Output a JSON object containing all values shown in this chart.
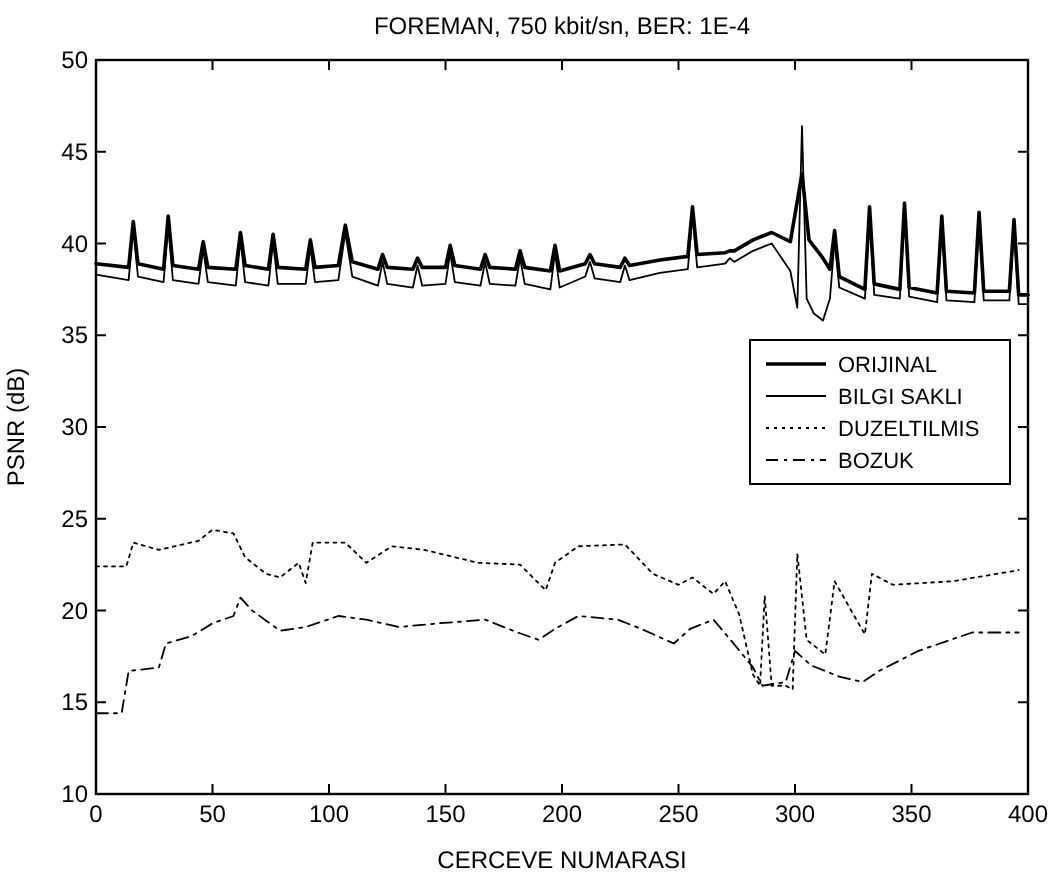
{
  "chart_data": {
    "type": "line",
    "title": "FOREMAN, 750 kbit/sn, BER: 1E-4",
    "xlabel": "CERCEVE NUMARASI",
    "ylabel": "PSNR (dB)",
    "xlim": [
      0,
      400
    ],
    "ylim": [
      10,
      50
    ],
    "xticks": [
      0,
      50,
      100,
      150,
      200,
      250,
      300,
      350,
      400
    ],
    "yticks": [
      10,
      15,
      20,
      25,
      30,
      35,
      40,
      45,
      50
    ],
    "grid": false,
    "legend": "right",
    "marker": "none",
    "series": [
      {
        "name": "ORIJINAL",
        "color": "#000000",
        "line_style": "solid",
        "x": [
          0,
          14,
          16,
          18,
          29,
          31,
          33,
          44,
          46,
          48,
          60,
          62,
          64,
          74,
          76,
          78,
          90,
          92,
          94,
          104,
          107,
          110,
          121,
          123,
          125,
          136,
          138,
          140,
          150,
          152,
          154,
          165,
          167,
          169,
          180,
          182,
          184,
          195,
          197,
          199,
          210,
          212,
          214,
          225,
          227,
          229,
          242,
          254,
          256,
          258,
          270,
          272,
          274,
          282,
          290,
          298,
          303,
          306,
          312,
          315,
          317,
          319,
          330,
          332,
          334,
          345,
          347,
          349,
          361,
          363,
          365,
          377,
          379,
          381,
          392,
          394,
          396,
          400
        ],
        "values": [
          38.9,
          38.7,
          41.2,
          38.9,
          38.6,
          41.5,
          38.8,
          38.6,
          40.1,
          38.7,
          38.6,
          40.6,
          38.8,
          38.6,
          40.5,
          38.7,
          38.6,
          40.2,
          38.7,
          38.8,
          41.0,
          39.0,
          38.6,
          39.4,
          38.7,
          38.6,
          39.2,
          38.7,
          38.7,
          39.9,
          38.8,
          38.6,
          39.4,
          38.7,
          38.6,
          39.6,
          38.7,
          38.5,
          39.9,
          38.5,
          38.9,
          39.4,
          38.9,
          38.7,
          39.2,
          38.8,
          39.1,
          39.3,
          42.0,
          39.4,
          39.5,
          39.6,
          39.6,
          40.2,
          40.6,
          40.1,
          43.8,
          40.2,
          39.2,
          38.6,
          40.7,
          38.2,
          37.5,
          42.0,
          37.8,
          37.5,
          42.2,
          37.6,
          37.3,
          41.5,
          37.4,
          37.3,
          41.7,
          37.4,
          37.4,
          41.3,
          37.2,
          37.2
        ]
      },
      {
        "name": "BILGI SAKLI",
        "color": "#000000",
        "line_style": "solid",
        "x": [
          0,
          14,
          16,
          18,
          29,
          31,
          33,
          44,
          46,
          48,
          60,
          62,
          64,
          74,
          76,
          78,
          90,
          92,
          94,
          104,
          107,
          110,
          121,
          123,
          125,
          136,
          138,
          140,
          150,
          152,
          154,
          165,
          167,
          169,
          180,
          182,
          184,
          195,
          197,
          199,
          210,
          212,
          214,
          225,
          227,
          229,
          242,
          254,
          256,
          258,
          270,
          272,
          274,
          282,
          290,
          298,
          301,
          303,
          305,
          308,
          312,
          315,
          317,
          319,
          330,
          332,
          334,
          345,
          347,
          349,
          361,
          363,
          365,
          377,
          379,
          381,
          392,
          394,
          396,
          400
        ],
        "values": [
          38.3,
          38.0,
          40.8,
          38.2,
          37.9,
          41.0,
          38.0,
          37.8,
          39.7,
          37.9,
          37.7,
          40.2,
          37.9,
          37.7,
          40.1,
          37.8,
          37.8,
          39.8,
          37.9,
          38.0,
          40.6,
          38.2,
          37.7,
          39.0,
          37.8,
          37.6,
          38.8,
          37.7,
          37.8,
          39.5,
          37.9,
          37.7,
          39.0,
          37.8,
          37.7,
          39.2,
          37.8,
          37.5,
          39.5,
          37.6,
          38.2,
          39.0,
          38.1,
          37.9,
          38.8,
          38.0,
          38.4,
          38.6,
          41.6,
          38.7,
          38.9,
          39.2,
          39.0,
          39.6,
          40.0,
          38.5,
          36.5,
          46.4,
          37.0,
          36.2,
          35.8,
          37.0,
          40.2,
          37.6,
          37.0,
          41.6,
          37.2,
          37.0,
          41.8,
          37.1,
          36.8,
          41.1,
          36.9,
          36.8,
          41.3,
          36.9,
          36.9,
          40.9,
          36.7,
          36.7
        ]
      },
      {
        "name": "DUZELTILMIS",
        "color": "#000000",
        "line_style": "dotted",
        "x": [
          0,
          13,
          16,
          27,
          44,
          50,
          59,
          64,
          73,
          79,
          87,
          90,
          93,
          107,
          116,
          127,
          141,
          164,
          182,
          193,
          197,
          207,
          227,
          239,
          250,
          256,
          265,
          270,
          276,
          282,
          285,
          287,
          290,
          296,
          299,
          301,
          305,
          313,
          317,
          325,
          330,
          333,
          342,
          368,
          396
        ],
        "values": [
          22.4,
          22.4,
          23.7,
          23.3,
          23.8,
          24.4,
          24.2,
          22.9,
          22.0,
          21.8,
          22.6,
          21.5,
          23.7,
          23.7,
          22.6,
          23.5,
          23.3,
          22.6,
          22.5,
          21.1,
          22.6,
          23.5,
          23.6,
          22.0,
          21.4,
          21.8,
          20.9,
          21.6,
          19.8,
          16.5,
          15.9,
          20.8,
          15.9,
          15.9,
          15.7,
          23.1,
          18.4,
          17.6,
          21.6,
          19.8,
          18.7,
          22.0,
          21.4,
          21.6,
          22.2
        ]
      },
      {
        "name": "BOZUK",
        "color": "#000000",
        "line_style": "dashed",
        "x": [
          0,
          11,
          14,
          27,
          30,
          41,
          50,
          59,
          62,
          67,
          79,
          90,
          104,
          116,
          130,
          147,
          167,
          181,
          190,
          197,
          207,
          224,
          234,
          248,
          255,
          265,
          273,
          282,
          286,
          296,
          300,
          307,
          319,
          329,
          336,
          353,
          376,
          396
        ],
        "values": [
          14.4,
          14.4,
          16.7,
          16.9,
          18.2,
          18.6,
          19.3,
          19.7,
          20.7,
          20.0,
          18.9,
          19.1,
          19.7,
          19.5,
          19.1,
          19.3,
          19.5,
          18.8,
          18.4,
          19.0,
          19.7,
          19.5,
          19.0,
          18.2,
          19.0,
          19.5,
          18.3,
          16.9,
          15.9,
          16.1,
          17.8,
          17.0,
          16.4,
          16.1,
          16.7,
          17.8,
          18.8,
          18.8
        ]
      }
    ]
  }
}
